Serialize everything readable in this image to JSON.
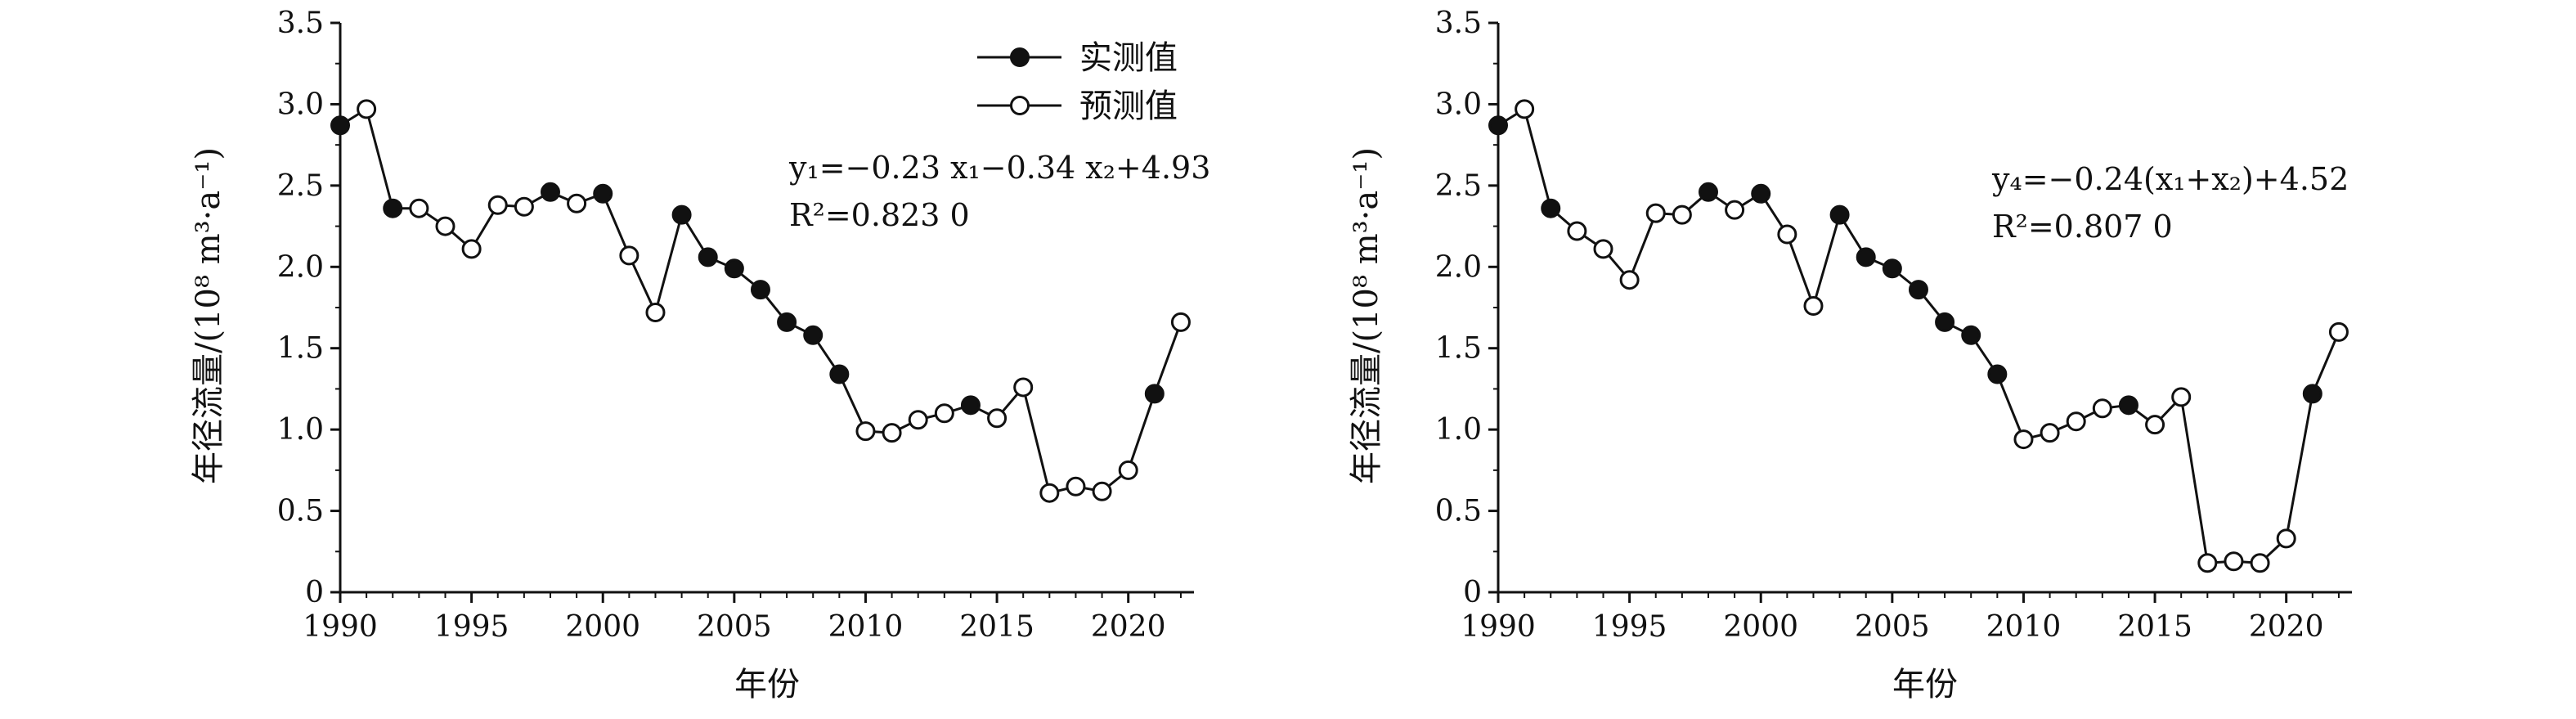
{
  "chart_data": [
    {
      "type": "line",
      "xlabel": "年份",
      "ylabel": "年径流量/(10⁸ m³·a⁻¹)",
      "xlim": [
        1990,
        2022.5
      ],
      "ylim": [
        0,
        3.5
      ],
      "xticks": [
        "1990",
        "1995",
        "2000",
        "2005",
        "2010",
        "2015",
        "2020"
      ],
      "yticks": [
        "0",
        "0.5",
        "1.0",
        "1.5",
        "2.0",
        "2.5",
        "3.0",
        "3.5"
      ],
      "grid": false,
      "legend": {
        "position": "top-right",
        "items": [
          {
            "label": "实测值",
            "marker": "filled-circle"
          },
          {
            "label": "预测值",
            "marker": "open-circle"
          }
        ]
      },
      "annotation": {
        "equation": "y₁=−0.23 x₁−0.34 x₂+4.93",
        "r2": "R²=0.823 0"
      },
      "points": [
        {
          "x": 1990,
          "y": 2.87,
          "kind": "measured"
        },
        {
          "x": 1991,
          "y": 2.97,
          "kind": "predicted"
        },
        {
          "x": 1992,
          "y": 2.36,
          "kind": "measured"
        },
        {
          "x": 1993,
          "y": 2.36,
          "kind": "predicted"
        },
        {
          "x": 1994,
          "y": 2.25,
          "kind": "predicted"
        },
        {
          "x": 1995,
          "y": 2.11,
          "kind": "predicted"
        },
        {
          "x": 1996,
          "y": 2.38,
          "kind": "predicted"
        },
        {
          "x": 1997,
          "y": 2.37,
          "kind": "predicted"
        },
        {
          "x": 1998,
          "y": 2.46,
          "kind": "measured"
        },
        {
          "x": 1999,
          "y": 2.39,
          "kind": "predicted"
        },
        {
          "x": 2000,
          "y": 2.45,
          "kind": "measured"
        },
        {
          "x": 2001,
          "y": 2.07,
          "kind": "predicted"
        },
        {
          "x": 2002,
          "y": 1.72,
          "kind": "predicted"
        },
        {
          "x": 2003,
          "y": 2.32,
          "kind": "measured"
        },
        {
          "x": 2004,
          "y": 2.06,
          "kind": "measured"
        },
        {
          "x": 2005,
          "y": 1.99,
          "kind": "measured"
        },
        {
          "x": 2006,
          "y": 1.86,
          "kind": "measured"
        },
        {
          "x": 2007,
          "y": 1.66,
          "kind": "measured"
        },
        {
          "x": 2008,
          "y": 1.58,
          "kind": "measured"
        },
        {
          "x": 2009,
          "y": 1.34,
          "kind": "measured"
        },
        {
          "x": 2010,
          "y": 0.99,
          "kind": "predicted"
        },
        {
          "x": 2011,
          "y": 0.98,
          "kind": "predicted"
        },
        {
          "x": 2012,
          "y": 1.06,
          "kind": "predicted"
        },
        {
          "x": 2013,
          "y": 1.1,
          "kind": "predicted"
        },
        {
          "x": 2014,
          "y": 1.15,
          "kind": "measured"
        },
        {
          "x": 2015,
          "y": 1.07,
          "kind": "predicted"
        },
        {
          "x": 2016,
          "y": 1.26,
          "kind": "predicted"
        },
        {
          "x": 2017,
          "y": 0.61,
          "kind": "predicted"
        },
        {
          "x": 2018,
          "y": 0.65,
          "kind": "predicted"
        },
        {
          "x": 2019,
          "y": 0.62,
          "kind": "predicted"
        },
        {
          "x": 2020,
          "y": 0.75,
          "kind": "predicted"
        },
        {
          "x": 2021,
          "y": 1.22,
          "kind": "measured"
        },
        {
          "x": 2022,
          "y": 1.66,
          "kind": "predicted"
        }
      ]
    },
    {
      "type": "line",
      "xlabel": "年份",
      "ylabel": "年径流量/(10⁸ m³·a⁻¹)",
      "xlim": [
        1990,
        2022.5
      ],
      "ylim": [
        0,
        3.5
      ],
      "xticks": [
        "1990",
        "1995",
        "2000",
        "2005",
        "2010",
        "2015",
        "2020"
      ],
      "yticks": [
        "0",
        "0.5",
        "1.0",
        "1.5",
        "2.0",
        "2.5",
        "3.0",
        "3.5"
      ],
      "grid": false,
      "annotation": {
        "equation": "y₄=−0.24(x₁+x₂)+4.52",
        "r2": "R²=0.807 0"
      },
      "points": [
        {
          "x": 1990,
          "y": 2.87,
          "kind": "measured"
        },
        {
          "x": 1991,
          "y": 2.97,
          "kind": "predicted"
        },
        {
          "x": 1992,
          "y": 2.36,
          "kind": "measured"
        },
        {
          "x": 1993,
          "y": 2.22,
          "kind": "predicted"
        },
        {
          "x": 1994,
          "y": 2.11,
          "kind": "predicted"
        },
        {
          "x": 1995,
          "y": 1.92,
          "kind": "predicted"
        },
        {
          "x": 1996,
          "y": 2.33,
          "kind": "predicted"
        },
        {
          "x": 1997,
          "y": 2.32,
          "kind": "predicted"
        },
        {
          "x": 1998,
          "y": 2.46,
          "kind": "measured"
        },
        {
          "x": 1999,
          "y": 2.35,
          "kind": "predicted"
        },
        {
          "x": 2000,
          "y": 2.45,
          "kind": "measured"
        },
        {
          "x": 2001,
          "y": 2.2,
          "kind": "predicted"
        },
        {
          "x": 2002,
          "y": 1.76,
          "kind": "predicted"
        },
        {
          "x": 2003,
          "y": 2.32,
          "kind": "measured"
        },
        {
          "x": 2004,
          "y": 2.06,
          "kind": "measured"
        },
        {
          "x": 2005,
          "y": 1.99,
          "kind": "measured"
        },
        {
          "x": 2006,
          "y": 1.86,
          "kind": "measured"
        },
        {
          "x": 2007,
          "y": 1.66,
          "kind": "measured"
        },
        {
          "x": 2008,
          "y": 1.58,
          "kind": "measured"
        },
        {
          "x": 2009,
          "y": 1.34,
          "kind": "measured"
        },
        {
          "x": 2010,
          "y": 0.94,
          "kind": "predicted"
        },
        {
          "x": 2011,
          "y": 0.98,
          "kind": "predicted"
        },
        {
          "x": 2012,
          "y": 1.05,
          "kind": "predicted"
        },
        {
          "x": 2013,
          "y": 1.13,
          "kind": "predicted"
        },
        {
          "x": 2014,
          "y": 1.15,
          "kind": "measured"
        },
        {
          "x": 2015,
          "y": 1.03,
          "kind": "predicted"
        },
        {
          "x": 2016,
          "y": 1.2,
          "kind": "predicted"
        },
        {
          "x": 2017,
          "y": 0.18,
          "kind": "predicted"
        },
        {
          "x": 2018,
          "y": 0.19,
          "kind": "predicted"
        },
        {
          "x": 2019,
          "y": 0.18,
          "kind": "predicted"
        },
        {
          "x": 2020,
          "y": 0.33,
          "kind": "predicted"
        },
        {
          "x": 2021,
          "y": 1.22,
          "kind": "measured"
        },
        {
          "x": 2022,
          "y": 1.6,
          "kind": "predicted"
        }
      ]
    }
  ]
}
